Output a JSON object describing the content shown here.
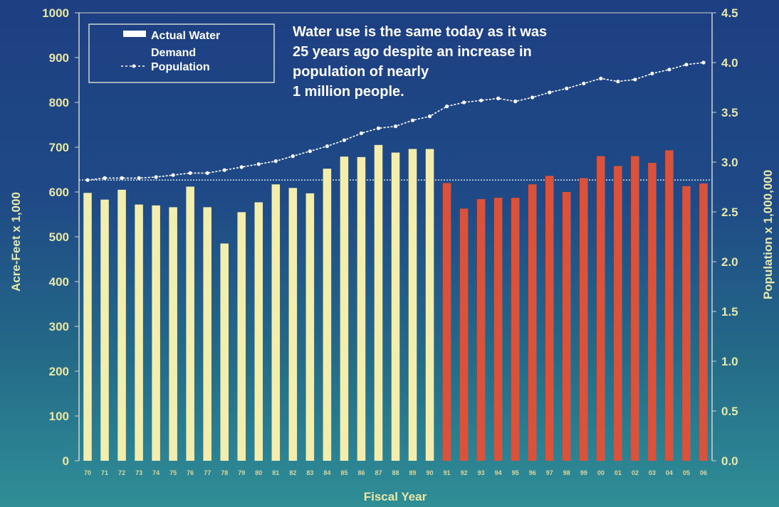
{
  "chart_data": {
    "type": "bar",
    "xlabel": "Fiscal Year",
    "ylabel": "Acre-Feet x 1,000",
    "y2label": "Population x 1,000,000",
    "ylim": [
      0,
      1000
    ],
    "y2lim": [
      0,
      4.5
    ],
    "yticks": [
      "0",
      "100",
      "200",
      "300",
      "400",
      "500",
      "600",
      "700",
      "800",
      "900",
      "1000"
    ],
    "y2ticks": [
      "0.0",
      "0.5",
      "1.0",
      "1.5",
      "2.0",
      "2.5",
      "3.0",
      "3.5",
      "4.0",
      "4.5"
    ],
    "categories": [
      "70",
      "71",
      "72",
      "73",
      "74",
      "75",
      "76",
      "77",
      "78",
      "79",
      "80",
      "81",
      "82",
      "83",
      "84",
      "85",
      "86",
      "87",
      "88",
      "89",
      "90",
      "91",
      "92",
      "93",
      "94",
      "95",
      "96",
      "97",
      "98",
      "99",
      "00",
      "01",
      "02",
      "03",
      "04",
      "05",
      "06"
    ],
    "series": [
      {
        "name": "Actual Water Demand",
        "type": "bar",
        "axis": "left",
        "values": [
          598,
          583,
          605,
          572,
          570,
          566,
          612,
          566,
          485,
          555,
          577,
          617,
          609,
          597,
          652,
          679,
          678,
          705,
          688,
          696,
          696,
          620,
          563,
          584,
          587,
          587,
          617,
          636,
          600,
          631,
          680,
          658,
          680,
          665,
          693,
          613,
          619
        ]
      },
      {
        "name": "Population",
        "type": "line",
        "axis": "right",
        "values": [
          2.82,
          2.84,
          2.84,
          2.84,
          2.85,
          2.87,
          2.89,
          2.89,
          2.92,
          2.95,
          2.98,
          3.01,
          3.06,
          3.11,
          3.16,
          3.22,
          3.29,
          3.34,
          3.36,
          3.42,
          3.46,
          3.56,
          3.6,
          3.62,
          3.64,
          3.61,
          3.65,
          3.7,
          3.74,
          3.79,
          3.84,
          3.81,
          3.83,
          3.89,
          3.93,
          3.98,
          4.0
        ]
      }
    ],
    "bar_colors": {
      "early": "#f1eeb0",
      "recent": "#d9533c"
    },
    "recent_start_index": 21,
    "line_color": "#ffffff",
    "annotation": [
      "Water use is the same today as it was",
      "25 years ago despite an increase in",
      "population of nearly",
      "1 million people."
    ],
    "legend": {
      "position": "top-left",
      "bar_label_lines": [
        "Actual Water",
        "Demand"
      ],
      "line_label": "Population"
    }
  }
}
